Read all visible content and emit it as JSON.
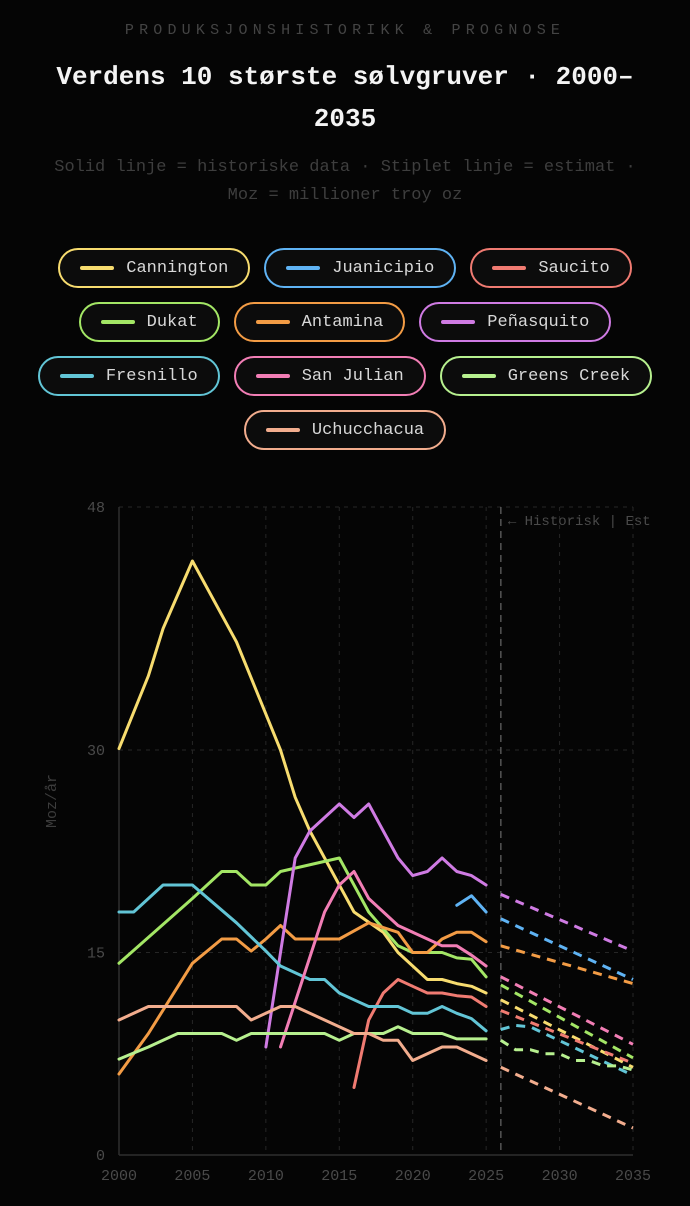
{
  "header": {
    "eyebrow": "PRODUKSJONSHISTORIKK & PROGNOSE",
    "title": "Verdens 10 største sølvgruver · 2000–2035",
    "subtitle": "Solid linje = historiske data  ·  Stiplet linje = estimat  ·  Moz = millioner troy oz"
  },
  "colors": {
    "background": "#050505",
    "grid": "#262626",
    "divider": "#555555"
  },
  "chart_data": {
    "type": "line",
    "title": "Verdens 10 største sølvgruver · 2000–2035",
    "ylabel": "Moz/år",
    "xlabel": "",
    "xlim": [
      2000,
      2035
    ],
    "ylim": [
      0,
      48
    ],
    "x_ticks": [
      2000,
      2005,
      2010,
      2015,
      2020,
      2025,
      2030,
      2035
    ],
    "y_ticks": [
      0,
      15,
      30,
      48
    ],
    "grid": true,
    "legend": "top",
    "divider": {
      "x": 2026,
      "label": "← Historisk | Est"
    },
    "series": [
      {
        "name": "Cannington",
        "color": "#f7dc6f",
        "historical": [
          [
            2000,
            30.1
          ],
          [
            2002,
            35.5
          ],
          [
            2003,
            39
          ],
          [
            2005,
            44
          ],
          [
            2008,
            38
          ],
          [
            2011,
            30
          ],
          [
            2012,
            26.5
          ],
          [
            2013,
            24
          ],
          [
            2014,
            22
          ],
          [
            2015,
            20
          ],
          [
            2016,
            18
          ],
          [
            2018,
            16.5
          ],
          [
            2019,
            15
          ],
          [
            2021,
            13
          ],
          [
            2022,
            13
          ],
          [
            2023,
            12.7
          ],
          [
            2024,
            12.5
          ],
          [
            2025,
            12
          ]
        ],
        "estimate": [
          [
            2026,
            11.5
          ],
          [
            2035,
            6.5
          ]
        ]
      },
      {
        "name": "Juanicipio",
        "color": "#5fb3f4",
        "historical": [
          [
            2023,
            18.5
          ],
          [
            2024,
            19.2
          ],
          [
            2025,
            18
          ]
        ],
        "estimate": [
          [
            2026,
            17.5
          ],
          [
            2035,
            13
          ]
        ]
      },
      {
        "name": "Saucito",
        "color": "#f07b72",
        "historical": [
          [
            2016,
            5
          ],
          [
            2017,
            10
          ],
          [
            2018,
            12
          ],
          [
            2019,
            13
          ],
          [
            2020,
            12.5
          ],
          [
            2021,
            12
          ],
          [
            2022,
            12
          ],
          [
            2023,
            11.8
          ],
          [
            2024,
            11.7
          ],
          [
            2025,
            11
          ]
        ],
        "estimate": [
          [
            2026,
            10.7
          ],
          [
            2035,
            6.8
          ]
        ]
      },
      {
        "name": "Dukat",
        "color": "#a3e665",
        "historical": [
          [
            2000,
            14.2
          ],
          [
            2005,
            19
          ],
          [
            2007,
            21
          ],
          [
            2008,
            21
          ],
          [
            2009,
            20
          ],
          [
            2010,
            20
          ],
          [
            2011,
            21
          ],
          [
            2015,
            22
          ],
          [
            2017,
            18
          ],
          [
            2019,
            15.5
          ],
          [
            2020,
            15
          ],
          [
            2022,
            15
          ],
          [
            2023,
            14.6
          ],
          [
            2024,
            14.5
          ],
          [
            2025,
            13.2
          ]
        ],
        "estimate": [
          [
            2026,
            12.6
          ],
          [
            2035,
            7.2
          ]
        ]
      },
      {
        "name": "Antamina",
        "color": "#f39c45",
        "historical": [
          [
            2000,
            6
          ],
          [
            2002,
            9
          ],
          [
            2005,
            14.2
          ],
          [
            2007,
            16
          ],
          [
            2008,
            16
          ],
          [
            2009,
            15.1
          ],
          [
            2010,
            16
          ],
          [
            2011,
            17
          ],
          [
            2012,
            16
          ],
          [
            2015,
            16
          ],
          [
            2017,
            17.2
          ],
          [
            2019,
            16.5
          ],
          [
            2020,
            15
          ],
          [
            2021,
            15
          ],
          [
            2022,
            16
          ],
          [
            2023,
            16.5
          ],
          [
            2024,
            16.5
          ],
          [
            2025,
            15.8
          ]
        ],
        "estimate": [
          [
            2026,
            15.5
          ],
          [
            2035,
            12.7
          ]
        ]
      },
      {
        "name": "Peñasquito",
        "color": "#cf7be3",
        "historical": [
          [
            2010,
            8
          ],
          [
            2011,
            15
          ],
          [
            2012,
            22
          ],
          [
            2013,
            24
          ],
          [
            2015,
            26
          ],
          [
            2016,
            25
          ],
          [
            2017,
            26
          ],
          [
            2018,
            24
          ],
          [
            2019,
            22
          ],
          [
            2020,
            20.7
          ],
          [
            2021,
            21
          ],
          [
            2022,
            22
          ],
          [
            2023,
            21
          ],
          [
            2024,
            20.7
          ],
          [
            2025,
            20
          ]
        ],
        "estimate": [
          [
            2026,
            19.3
          ],
          [
            2035,
            15.1
          ]
        ]
      },
      {
        "name": "Fresnillo",
        "color": "#62c5d6",
        "historical": [
          [
            2000,
            18
          ],
          [
            2001,
            18
          ],
          [
            2003,
            20
          ],
          [
            2005,
            20
          ],
          [
            2008,
            17.2
          ],
          [
            2010,
            15.1
          ],
          [
            2011,
            14
          ],
          [
            2013,
            13
          ],
          [
            2014,
            13
          ],
          [
            2015,
            12
          ],
          [
            2016,
            11.5
          ],
          [
            2017,
            11
          ],
          [
            2019,
            11
          ],
          [
            2020,
            10.5
          ],
          [
            2021,
            10.5
          ],
          [
            2022,
            11
          ],
          [
            2023,
            10.5
          ],
          [
            2024,
            10.1
          ],
          [
            2025,
            9.2
          ]
        ],
        "estimate": [
          [
            2026,
            9.3
          ],
          [
            2027,
            9.6
          ],
          [
            2028,
            9.5
          ],
          [
            2035,
            5.9
          ]
        ]
      },
      {
        "name": "San Julian",
        "color": "#f27eb5",
        "historical": [
          [
            2011,
            8
          ],
          [
            2014,
            18
          ],
          [
            2015,
            20
          ],
          [
            2016,
            21
          ],
          [
            2017,
            19
          ],
          [
            2019,
            17
          ],
          [
            2021,
            16
          ],
          [
            2022,
            15.5
          ],
          [
            2023,
            15.5
          ],
          [
            2024,
            14.8
          ],
          [
            2025,
            14
          ]
        ],
        "estimate": [
          [
            2026,
            13.2
          ],
          [
            2035,
            8.2
          ]
        ]
      },
      {
        "name": "Greens Creek",
        "color": "#b7f08f",
        "historical": [
          [
            2000,
            7.1
          ],
          [
            2002,
            8
          ],
          [
            2004,
            9
          ],
          [
            2007,
            9
          ],
          [
            2008,
            8.5
          ],
          [
            2009,
            9
          ],
          [
            2014,
            9
          ],
          [
            2015,
            8.5
          ],
          [
            2016,
            9
          ],
          [
            2018,
            9
          ],
          [
            2019,
            9.5
          ],
          [
            2020,
            9
          ],
          [
            2022,
            9
          ],
          [
            2023,
            8.6
          ],
          [
            2025,
            8.6
          ]
        ],
        "estimate": [
          [
            2026,
            8.5
          ],
          [
            2027,
            7.8
          ],
          [
            2028,
            7.8
          ],
          [
            2029,
            7.5
          ],
          [
            2030,
            7.5
          ],
          [
            2031,
            7
          ],
          [
            2032,
            7
          ],
          [
            2033,
            6.6
          ],
          [
            2034,
            6.6
          ],
          [
            2035,
            6.3
          ]
        ]
      },
      {
        "name": "Uchucchacua",
        "color": "#f2ad8e",
        "historical": [
          [
            2000,
            10
          ],
          [
            2002,
            11
          ],
          [
            2004,
            11
          ],
          [
            2008,
            11
          ],
          [
            2009,
            10
          ],
          [
            2011,
            11
          ],
          [
            2012,
            11
          ],
          [
            2014,
            10
          ],
          [
            2016,
            9
          ],
          [
            2017,
            9
          ],
          [
            2018,
            8.5
          ],
          [
            2019,
            8.5
          ],
          [
            2020,
            7
          ],
          [
            2022,
            8
          ],
          [
            2023,
            8
          ],
          [
            2025,
            7
          ]
        ],
        "estimate": [
          [
            2026,
            6.5
          ],
          [
            2035,
            2
          ]
        ]
      }
    ]
  }
}
